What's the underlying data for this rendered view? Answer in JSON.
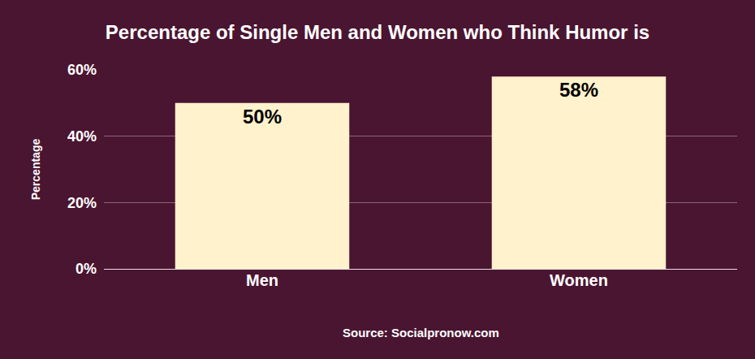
{
  "chart_data": {
    "type": "bar",
    "title": "Percentage of Single Men and Women who Think Humor is",
    "y_label": "Percentage",
    "categories": [
      "Men",
      "Women"
    ],
    "values": [
      50,
      58
    ],
    "value_labels": [
      "50%",
      "58%"
    ],
    "data_labels": true,
    "color": "#fff2cc",
    "ylim": [
      0,
      60
    ],
    "yticks": [
      {
        "value": 0,
        "label": "0%"
      },
      {
        "value": 20,
        "label": "20%"
      },
      {
        "value": 40,
        "label": "40%"
      },
      {
        "value": 60,
        "label": "60%"
      }
    ],
    "grid": true,
    "annotations": [
      "Source: Socialpronow.com"
    ]
  }
}
